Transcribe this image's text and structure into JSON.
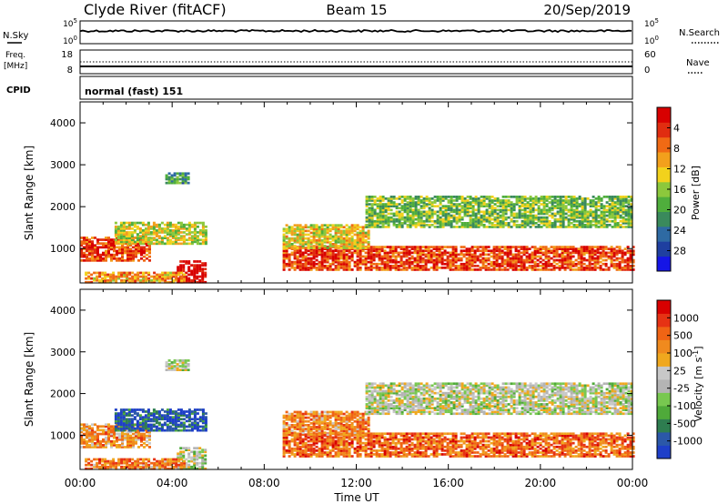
{
  "header": {
    "station": "Clyde River (fitACF)",
    "beam": "Beam 15",
    "date": "20/Sep/2019"
  },
  "top_panels": {
    "nsky_label": "N.Sky",
    "nsky_ticks": [
      "10^5",
      "10^0"
    ],
    "nsearch_label": "N.Search",
    "nsearch_ticks": [
      "10^5",
      "10^0"
    ],
    "freq_label_1": "Freq.",
    "freq_label_2": "[MHz]",
    "freq_ticks": [
      "18",
      "8"
    ],
    "nave_label": "Nave",
    "nave_ticks": [
      "60",
      "0"
    ],
    "cpid_label": "CPID",
    "cpid_text": "normal (fast) 151"
  },
  "chart_data": [
    {
      "type": "heatmap",
      "name": "power",
      "ylabel": "Slant Range [km]",
      "xlabel": "",
      "xlim": [
        0,
        24
      ],
      "ylim": [
        180,
        4500
      ],
      "yticks": [
        "1000",
        "2000",
        "3000",
        "4000"
      ],
      "colorbar": {
        "label": "Power [dB]",
        "ticks": [
          "4",
          "8",
          "12",
          "16",
          "20",
          "24",
          "28"
        ],
        "colors": [
          "#1515e6",
          "#1f3fa0",
          "#2e6aa3",
          "#3a8a5c",
          "#4fae3c",
          "#8cc83c",
          "#f2d21c",
          "#f2a01c",
          "#f06a14",
          "#e02d10",
          "#d80000"
        ]
      },
      "bands": [
        {
          "t0": 0.0,
          "t1": 3.0,
          "r0": 700,
          "r1": 1250,
          "level": 0.85
        },
        {
          "t0": 1.5,
          "t1": 5.5,
          "r0": 1100,
          "r1": 1600,
          "level": 0.55
        },
        {
          "t0": 4.2,
          "t1": 5.5,
          "r0": 180,
          "r1": 700,
          "level": 1.0
        },
        {
          "t0": 0.2,
          "t1": 4.5,
          "r0": 180,
          "r1": 420,
          "level": 0.7
        },
        {
          "t0": 8.8,
          "t1": 24.0,
          "r0": 480,
          "r1": 1050,
          "level": 0.85
        },
        {
          "t0": 8.8,
          "t1": 12.5,
          "r0": 1000,
          "r1": 1550,
          "level": 0.6
        },
        {
          "t0": 12.4,
          "t1": 24.0,
          "r0": 1500,
          "r1": 2250,
          "level": 0.45
        },
        {
          "t0": 3.7,
          "t1": 4.7,
          "r0": 2550,
          "r1": 2800,
          "level": 0.35
        }
      ]
    },
    {
      "type": "heatmap",
      "name": "velocity",
      "ylabel": "Slant Range [km]",
      "xlabel": "Time UT",
      "xlim": [
        0,
        24
      ],
      "ylim": [
        180,
        4500
      ],
      "yticks": [
        "1000",
        "2000",
        "3000",
        "4000"
      ],
      "xticks": [
        "00:00",
        "04:00",
        "08:00",
        "12:00",
        "16:00",
        "20:00",
        "00:00"
      ],
      "colorbar": {
        "label": "Velocity [m s^-1]",
        "ticks": [
          "1000",
          "500",
          "100",
          "25",
          "-25",
          "-100",
          "-500",
          "-1000"
        ],
        "colors": [
          "#1e3fc8",
          "#2b58a8",
          "#2e7d50",
          "#4faa3a",
          "#78c850",
          "#b4b4b4",
          "#c8c8c8",
          "#f0a81e",
          "#f08a1e",
          "#f06414",
          "#e63214",
          "#d80000"
        ]
      },
      "bands": [
        {
          "t0": 0.0,
          "t1": 3.0,
          "r0": 700,
          "r1": 1250,
          "level": 0.7
        },
        {
          "t0": 1.5,
          "t1": 5.5,
          "r0": 1100,
          "r1": 1600,
          "level": 0.1
        },
        {
          "t0": 4.2,
          "t1": 5.5,
          "r0": 180,
          "r1": 700,
          "level": 0.45
        },
        {
          "t0": 0.2,
          "t1": 4.5,
          "r0": 180,
          "r1": 420,
          "level": 0.75
        },
        {
          "t0": 8.8,
          "t1": 24.0,
          "r0": 480,
          "r1": 1050,
          "level": 0.78
        },
        {
          "t0": 8.8,
          "t1": 12.5,
          "r0": 1000,
          "r1": 1550,
          "level": 0.72
        },
        {
          "t0": 12.4,
          "t1": 24.0,
          "r0": 1500,
          "r1": 2250,
          "level": 0.48
        },
        {
          "t0": 3.7,
          "t1": 4.7,
          "r0": 2550,
          "r1": 2800,
          "level": 0.48
        }
      ]
    }
  ]
}
